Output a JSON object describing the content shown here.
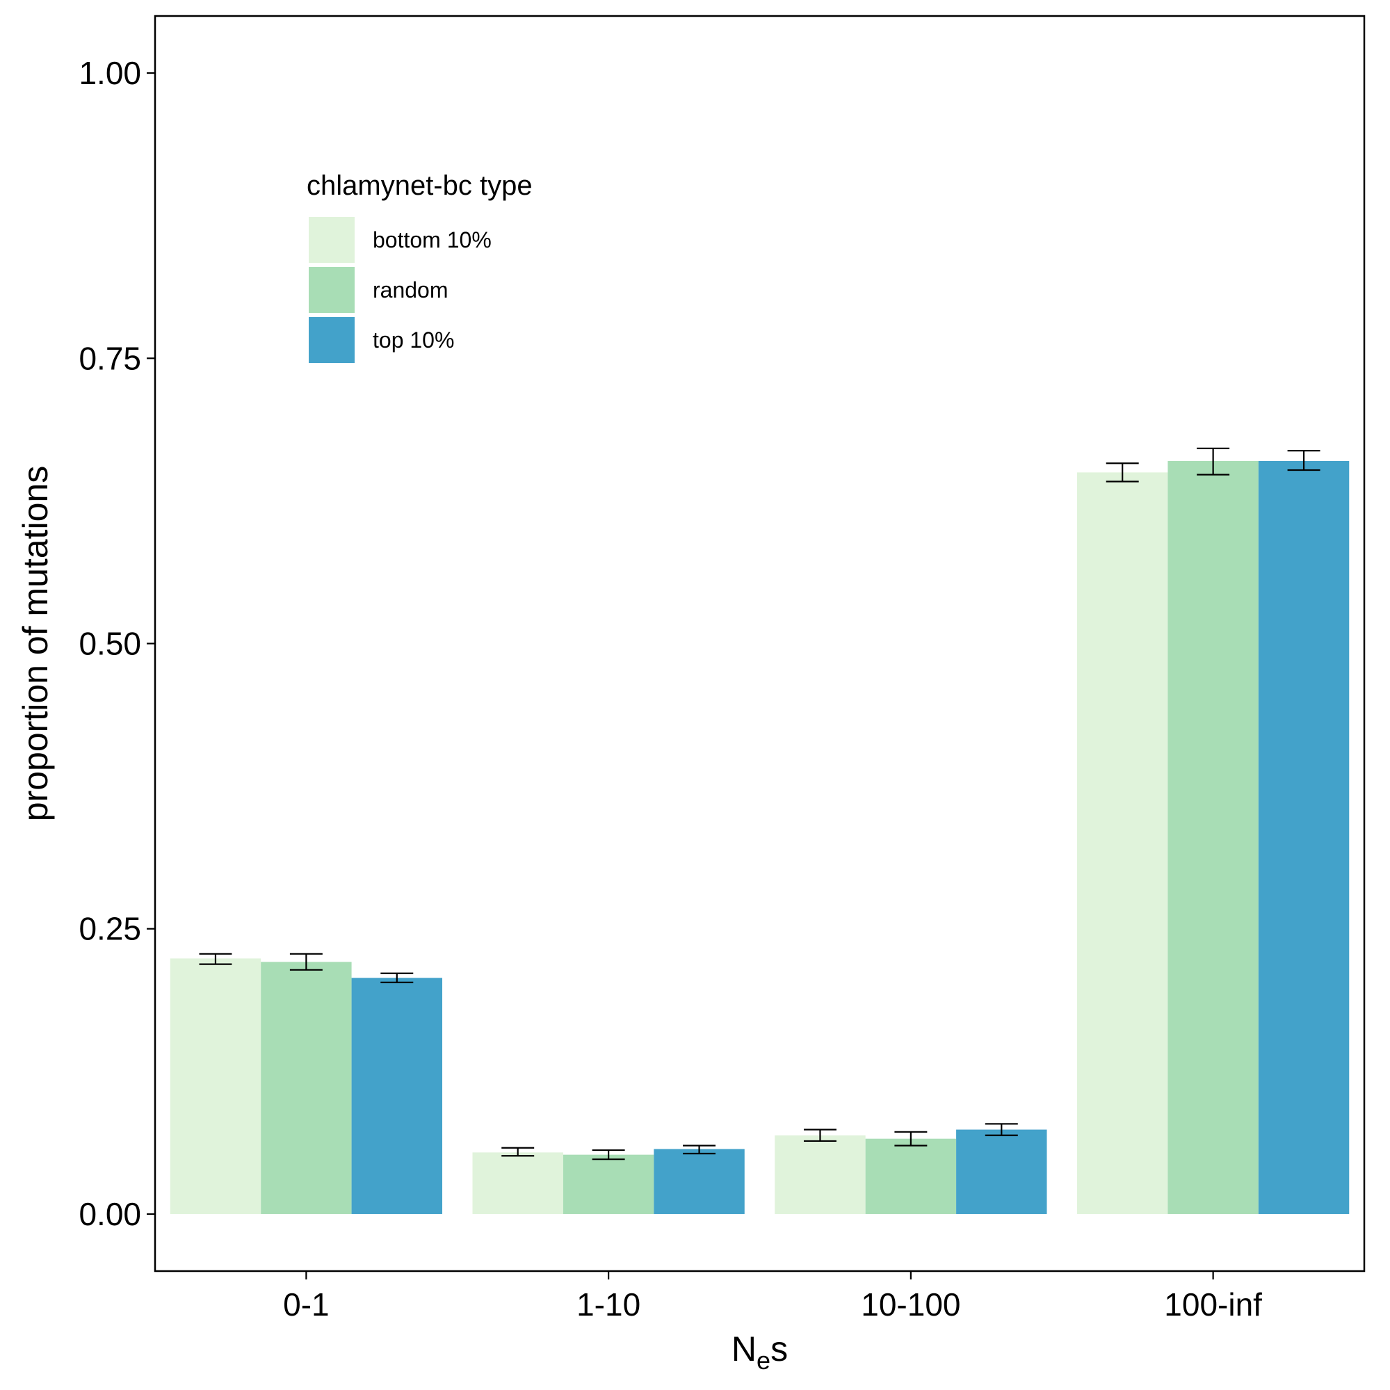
{
  "chart_data": {
    "type": "bar",
    "categories": [
      "0-1",
      "1-10",
      "10-100",
      "100-inf"
    ],
    "series": [
      {
        "name": "bottom 10%",
        "color": "#e0f3db",
        "values": [
          0.224,
          0.054,
          0.069,
          0.65
        ],
        "err_low": [
          0.219,
          0.051,
          0.064,
          0.642
        ],
        "err_high": [
          0.228,
          0.058,
          0.074,
          0.658
        ]
      },
      {
        "name": "random",
        "color": "#a8ddb5",
        "values": [
          0.221,
          0.052,
          0.066,
          0.66
        ],
        "err_low": [
          0.214,
          0.048,
          0.06,
          0.648
        ],
        "err_high": [
          0.228,
          0.056,
          0.072,
          0.671
        ]
      },
      {
        "name": "top 10%",
        "color": "#43a2ca",
        "values": [
          0.207,
          0.057,
          0.074,
          0.66
        ],
        "err_low": [
          0.203,
          0.053,
          0.069,
          0.652
        ],
        "err_high": [
          0.211,
          0.06,
          0.079,
          0.669
        ]
      }
    ],
    "xlabel_main": "N",
    "xlabel_sub": "e",
    "xlabel_tail": "s",
    "ylabel": "proportion of mutations",
    "ylim": [
      -0.05,
      1.05
    ],
    "yticks": [
      "0.00",
      "0.25",
      "0.50",
      "0.75",
      "1.00"
    ],
    "legend_title": "chlamynet-bc type",
    "legend_position": "top-left"
  }
}
